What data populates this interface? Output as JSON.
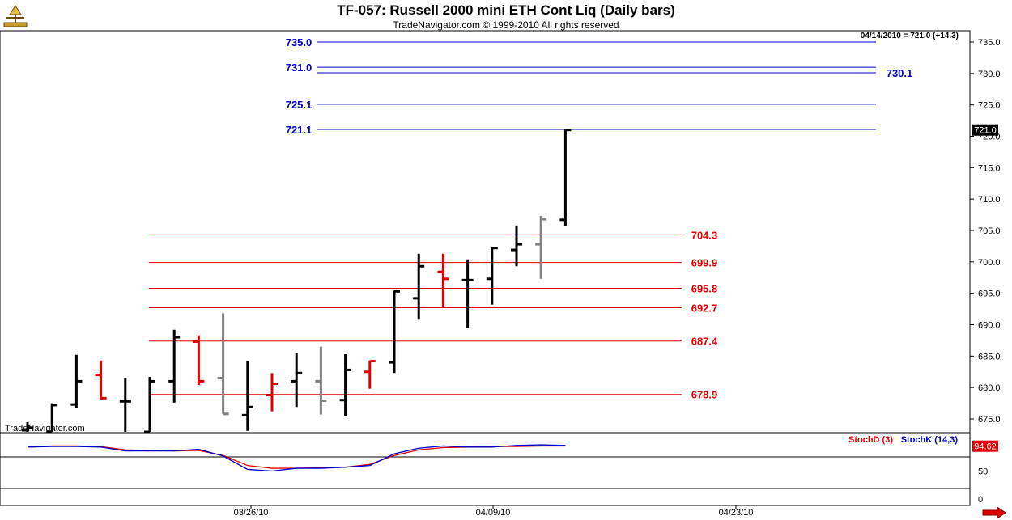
{
  "header": {
    "title": "TF-057:  Russell 2000 mini ETH Cont Liq  (Daily bars)",
    "subtitle": "TradeNavigator.com © 1999-2010 All rights reserved",
    "info": "04/14/2010 = 721.0 (+14.3)",
    "watermark": "TradeNavigator.com"
  },
  "colors": {
    "up_bar": "#000000",
    "down_bar": "#e00000",
    "neutral_bar": "#808080",
    "blue_level": "#0000cc",
    "red_level": "#e00000",
    "stoch_d": "#e00000",
    "stoch_k": "#0000cc"
  },
  "icons": {
    "logo": "trade-navigator-logo-icon",
    "scroll": "right-arrow-icon"
  },
  "chart_data": [
    {
      "type": "ohlc",
      "title": "TF-057:  Russell 2000 mini ETH Cont Liq  (Daily bars)",
      "ylim": [
        672.5,
        737
      ],
      "yticks": [
        "735.0",
        "730.0",
        "725.0",
        "720.0",
        "715.0",
        "710.0",
        "705.0",
        "700.0",
        "695.0",
        "690.0",
        "685.0",
        "680.0",
        "675.0"
      ],
      "xticks": [
        "03/26/10",
        "04/09/10",
        "04/23/10"
      ],
      "last_price": "721.0",
      "bars": [
        {
          "o": 673.2,
          "h": 674.5,
          "l": 672.5,
          "c": 673.6,
          "color": "up"
        },
        {
          "o": 672.8,
          "h": 677.5,
          "l": 672.5,
          "c": 677.2,
          "color": "up"
        },
        {
          "o": 677.3,
          "h": 685.2,
          "l": 676.8,
          "c": 681.0,
          "color": "up"
        },
        {
          "o": 682.0,
          "h": 684.3,
          "l": 678.1,
          "c": 678.3,
          "color": "down"
        },
        {
          "o": 677.8,
          "h": 681.5,
          "l": 672.5,
          "c": 677.8,
          "color": "up"
        },
        {
          "o": 672.5,
          "h": 681.7,
          "l": 672.5,
          "c": 681.0,
          "color": "up"
        },
        {
          "o": 681.0,
          "h": 689.2,
          "l": 677.6,
          "c": 688.0,
          "color": "up"
        },
        {
          "o": 687.3,
          "h": 688.3,
          "l": 680.4,
          "c": 681.0,
          "color": "down"
        },
        {
          "o": 681.5,
          "h": 691.8,
          "l": 675.8,
          "c": 675.8,
          "color": "neutral"
        },
        {
          "o": 675.6,
          "h": 684.2,
          "l": 673.1,
          "c": 676.9,
          "color": "up"
        },
        {
          "o": 678.8,
          "h": 682.3,
          "l": 676.2,
          "c": 680.6,
          "color": "down"
        },
        {
          "o": 681.0,
          "h": 685.5,
          "l": 676.9,
          "c": 682.3,
          "color": "up"
        },
        {
          "o": 681.0,
          "h": 686.5,
          "l": 675.7,
          "c": 677.9,
          "color": "neutral"
        },
        {
          "o": 678.0,
          "h": 685.3,
          "l": 675.5,
          "c": 682.8,
          "color": "up"
        },
        {
          "o": 682.5,
          "h": 684.3,
          "l": 679.8,
          "c": 684.2,
          "color": "down"
        },
        {
          "o": 684.0,
          "h": 695.4,
          "l": 682.3,
          "c": 695.3,
          "color": "up"
        },
        {
          "o": 694.2,
          "h": 701.3,
          "l": 690.8,
          "c": 699.3,
          "color": "up"
        },
        {
          "o": 698.4,
          "h": 701.3,
          "l": 692.9,
          "c": 697.3,
          "color": "down"
        },
        {
          "o": 697.1,
          "h": 700.4,
          "l": 689.5,
          "c": 697.1,
          "color": "up"
        },
        {
          "o": 697.3,
          "h": 702.3,
          "l": 693.2,
          "c": 702.2,
          "color": "up"
        },
        {
          "o": 701.9,
          "h": 705.8,
          "l": 699.3,
          "c": 702.8,
          "color": "up"
        },
        {
          "o": 702.8,
          "h": 707.3,
          "l": 697.3,
          "c": 706.8,
          "color": "neutral"
        },
        {
          "o": 706.7,
          "h": 721.1,
          "l": 705.7,
          "c": 721.0,
          "color": "up"
        }
      ],
      "blue_levels": [
        {
          "value": 735.0,
          "label": "735.0"
        },
        {
          "value": 731.0,
          "label": "731.0"
        },
        {
          "value": 730.1,
          "label": "730.1"
        },
        {
          "value": 725.1,
          "label": "725.1"
        },
        {
          "value": 721.1,
          "label": "721.1"
        }
      ],
      "red_levels": [
        {
          "value": 704.3,
          "label": "704.3"
        },
        {
          "value": 699.9,
          "label": "699.9"
        },
        {
          "value": 695.8,
          "label": "695.8"
        },
        {
          "value": 692.7,
          "label": "692.7"
        },
        {
          "value": 687.4,
          "label": "687.4"
        },
        {
          "value": 678.9,
          "label": "678.9"
        }
      ]
    },
    {
      "type": "line",
      "ylim": [
        0,
        100
      ],
      "yticks": [
        "50",
        "0"
      ],
      "last_value": "94.62",
      "series": [
        {
          "name": "StochD (3)",
          "values": [
            93,
            95,
            95,
            94,
            88,
            87,
            86,
            87,
            78,
            60,
            55,
            55,
            56,
            57,
            62,
            78,
            88,
            92,
            93,
            94,
            94,
            95,
            95
          ]
        },
        {
          "name": "StochK (14,3)",
          "values": [
            93,
            94,
            94,
            93,
            86,
            86,
            86,
            89,
            77,
            53,
            50,
            55,
            55,
            57,
            60,
            81,
            91,
            95,
            93,
            93,
            96,
            97,
            96
          ]
        }
      ]
    }
  ],
  "stoch_legend": {
    "d_label": "StochD (3)",
    "k_label": "StochK (14,3)"
  }
}
